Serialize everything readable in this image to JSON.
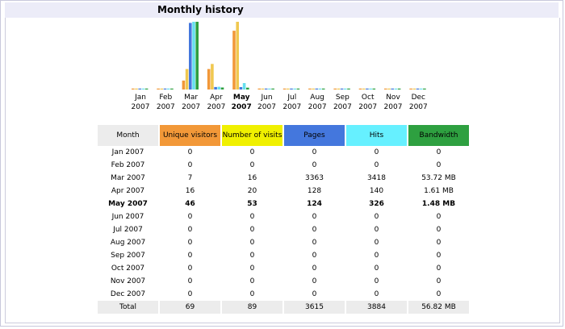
{
  "title": "Monthly history",
  "colors": {
    "unique": "#f29838",
    "visits": "#f0c850",
    "pages": "#4477dd",
    "hits": "#66e0ee",
    "bandwidth": "#2ea040"
  },
  "chart_data": {
    "type": "bar",
    "categories": [
      "Jan 2007",
      "Feb 2007",
      "Mar 2007",
      "Apr 2007",
      "May 2007",
      "Jun 2007",
      "Jul 2007",
      "Aug 2007",
      "Sep 2007",
      "Oct 2007",
      "Nov 2007",
      "Dec 2007"
    ],
    "month_labels": [
      {
        "m": "Jan",
        "y": "2007",
        "bold": false
      },
      {
        "m": "Feb",
        "y": "2007",
        "bold": false
      },
      {
        "m": "Mar",
        "y": "2007",
        "bold": false
      },
      {
        "m": "Apr",
        "y": "2007",
        "bold": false
      },
      {
        "m": "May",
        "y": "2007",
        "bold": true
      },
      {
        "m": "Jun",
        "y": "2007",
        "bold": false
      },
      {
        "m": "Jul",
        "y": "2007",
        "bold": false
      },
      {
        "m": "Aug",
        "y": "2007",
        "bold": false
      },
      {
        "m": "Sep",
        "y": "2007",
        "bold": false
      },
      {
        "m": "Oct",
        "y": "2007",
        "bold": false
      },
      {
        "m": "Nov",
        "y": "2007",
        "bold": false
      },
      {
        "m": "Dec",
        "y": "2007",
        "bold": false
      }
    ],
    "series": [
      {
        "key": "unique",
        "values": [
          0,
          0,
          7,
          16,
          46,
          0,
          0,
          0,
          0,
          0,
          0,
          0
        ]
      },
      {
        "key": "visits",
        "values": [
          0,
          0,
          16,
          20,
          53,
          0,
          0,
          0,
          0,
          0,
          0,
          0
        ]
      },
      {
        "key": "pages",
        "values": [
          0,
          0,
          3363,
          128,
          124,
          0,
          0,
          0,
          0,
          0,
          0,
          0
        ]
      },
      {
        "key": "hits",
        "values": [
          0,
          0,
          3418,
          140,
          326,
          0,
          0,
          0,
          0,
          0,
          0,
          0
        ]
      },
      {
        "key": "bandwidth_mb",
        "values": [
          0,
          0,
          53.72,
          1.61,
          1.48,
          0,
          0,
          0,
          0,
          0,
          0,
          0
        ]
      }
    ]
  },
  "table": {
    "headers": {
      "month": "Month",
      "unique": "Unique visitors",
      "visits": "Number of visits",
      "pages": "Pages",
      "hits": "Hits",
      "bandwidth": "Bandwidth"
    },
    "rows": [
      {
        "month": "Jan 2007",
        "unique": "0",
        "visits": "0",
        "pages": "0",
        "hits": "0",
        "bandwidth": "0",
        "bold": false
      },
      {
        "month": "Feb 2007",
        "unique": "0",
        "visits": "0",
        "pages": "0",
        "hits": "0",
        "bandwidth": "0",
        "bold": false
      },
      {
        "month": "Mar 2007",
        "unique": "7",
        "visits": "16",
        "pages": "3363",
        "hits": "3418",
        "bandwidth": "53.72 MB",
        "bold": false
      },
      {
        "month": "Apr 2007",
        "unique": "16",
        "visits": "20",
        "pages": "128",
        "hits": "140",
        "bandwidth": "1.61 MB",
        "bold": false
      },
      {
        "month": "May 2007",
        "unique": "46",
        "visits": "53",
        "pages": "124",
        "hits": "326",
        "bandwidth": "1.48 MB",
        "bold": true
      },
      {
        "month": "Jun 2007",
        "unique": "0",
        "visits": "0",
        "pages": "0",
        "hits": "0",
        "bandwidth": "0",
        "bold": false
      },
      {
        "month": "Jul 2007",
        "unique": "0",
        "visits": "0",
        "pages": "0",
        "hits": "0",
        "bandwidth": "0",
        "bold": false
      },
      {
        "month": "Aug 2007",
        "unique": "0",
        "visits": "0",
        "pages": "0",
        "hits": "0",
        "bandwidth": "0",
        "bold": false
      },
      {
        "month": "Sep 2007",
        "unique": "0",
        "visits": "0",
        "pages": "0",
        "hits": "0",
        "bandwidth": "0",
        "bold": false
      },
      {
        "month": "Oct 2007",
        "unique": "0",
        "visits": "0",
        "pages": "0",
        "hits": "0",
        "bandwidth": "0",
        "bold": false
      },
      {
        "month": "Nov 2007",
        "unique": "0",
        "visits": "0",
        "pages": "0",
        "hits": "0",
        "bandwidth": "0",
        "bold": false
      },
      {
        "month": "Dec 2007",
        "unique": "0",
        "visits": "0",
        "pages": "0",
        "hits": "0",
        "bandwidth": "0",
        "bold": false
      }
    ],
    "total": {
      "month": "Total",
      "unique": "69",
      "visits": "89",
      "pages": "3615",
      "hits": "3884",
      "bandwidth": "56.82 MB"
    }
  }
}
